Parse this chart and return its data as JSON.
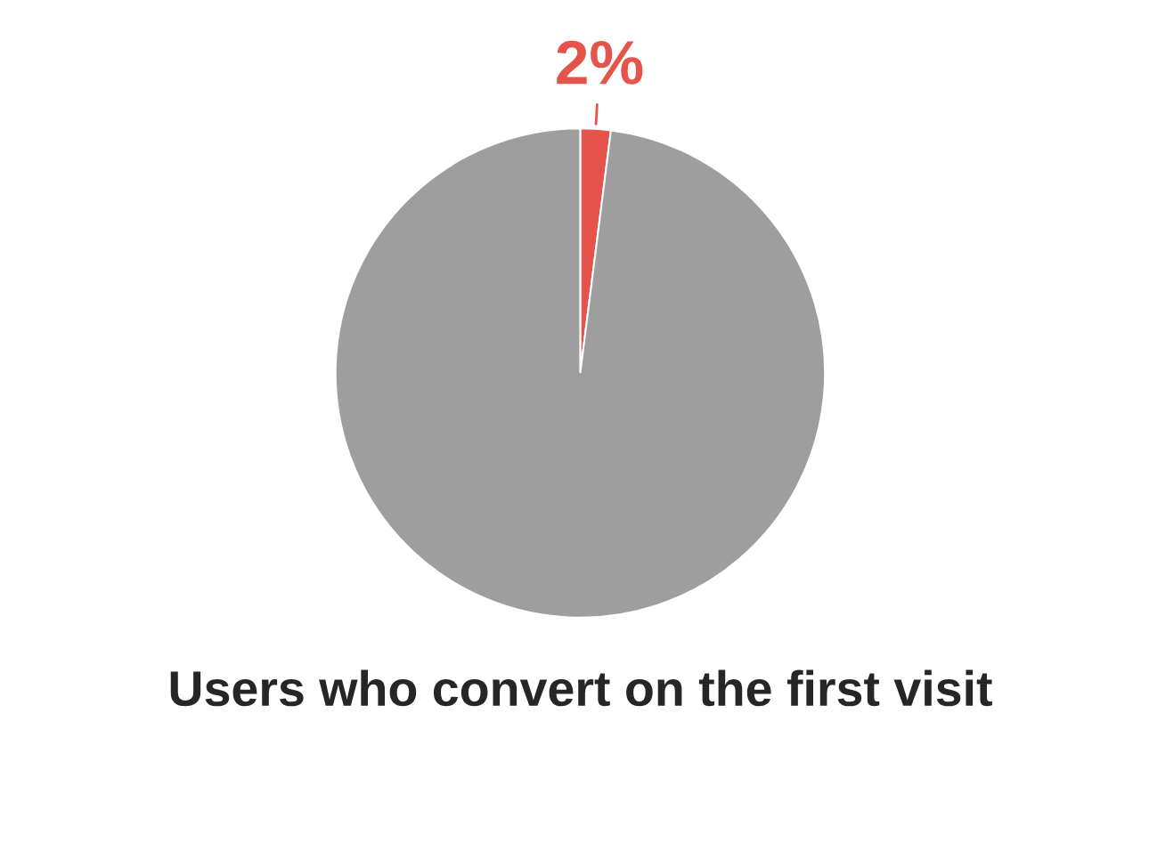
{
  "chart_data": {
    "type": "pie",
    "title": "Users who convert on the first visit",
    "categories": [
      null,
      null
    ],
    "values": [
      2,
      98
    ],
    "colors": [
      "#e5534b",
      "#9e9e9e"
    ],
    "value_labels": [
      "2%",
      null
    ]
  }
}
